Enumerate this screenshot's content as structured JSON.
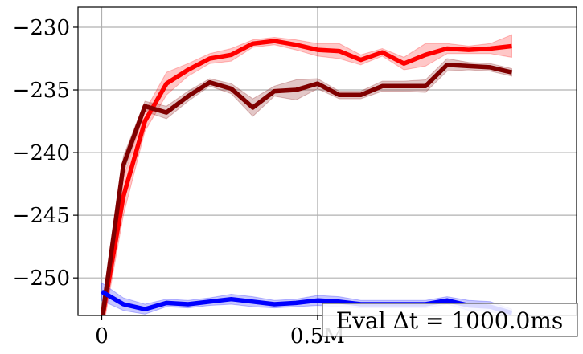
{
  "chart_data": {
    "type": "line",
    "title": "",
    "xlabel": "",
    "ylabel": "",
    "xlim": [
      -55000,
      1100000
    ],
    "ylim": [
      -253,
      -228.4
    ],
    "grid": true,
    "x_ticks": [
      {
        "value": 0,
        "label": "0"
      },
      {
        "value": 500000,
        "label": "0.5M"
      }
    ],
    "y_ticks": [
      {
        "value": -230,
        "label": "−230"
      },
      {
        "value": -235,
        "label": "−235"
      },
      {
        "value": -240,
        "label": "−240"
      },
      {
        "value": -245,
        "label": "−245"
      },
      {
        "value": -250,
        "label": "−250"
      }
    ],
    "legend_box": {
      "text": "Eval Δt = 1000.0ms",
      "placement": "bottom-right"
    },
    "x": [
      0,
      50000,
      100000,
      150000,
      200000,
      250000,
      300000,
      350000,
      400000,
      450000,
      500000,
      550000,
      600000,
      650000,
      700000,
      750000,
      800000,
      850000,
      900000,
      950000,
      1000000,
      1050000
    ],
    "series": [
      {
        "color": "#ff0000",
        "values": [
          -253.5,
          -243.5,
          -237.5,
          -234.5,
          -233.4,
          -232.5,
          -232.2,
          -231.3,
          -231.1,
          -231.4,
          -231.8,
          -231.9,
          -232.6,
          -232.0,
          -232.9,
          -232.2,
          -231.7,
          -231.8,
          -231.7,
          -231.5,
          null,
          null
        ],
        "band": [
          1.2,
          1.5,
          0.8,
          0.9,
          0.5,
          0.4,
          0.5,
          0.3,
          0.3,
          0.4,
          0.5,
          0.6,
          0.4,
          0.3,
          0.5,
          0.9,
          0.4,
          0.3,
          0.4,
          0.9,
          null,
          null
        ]
      },
      {
        "color": "#800000",
        "values": [
          -253.5,
          -241.0,
          -236.3,
          -236.8,
          -235.5,
          -234.4,
          -234.9,
          -236.4,
          -235.1,
          -235.0,
          -234.5,
          -235.4,
          -235.4,
          -234.7,
          -234.7,
          -234.7,
          -233.0,
          -233.1,
          -233.2,
          -233.6,
          null,
          null
        ],
        "band": [
          1.0,
          0.7,
          0.4,
          0.5,
          0.4,
          0.3,
          0.4,
          0.7,
          0.4,
          0.8,
          0.4,
          0.3,
          0.3,
          0.4,
          0.4,
          0.5,
          0.5,
          0.3,
          0.3,
          0.3,
          null,
          null
        ]
      },
      {
        "color": "#0000ff",
        "values": [
          -251.1,
          -252.1,
          -252.5,
          -252.0,
          -252.1,
          -251.9,
          -251.7,
          -251.9,
          -252.1,
          -252.0,
          -251.8,
          -251.9,
          -252.1,
          -252.1,
          -252.1,
          -252.1,
          -251.8,
          -252.2,
          -252.3,
          -252.8,
          null,
          null
        ],
        "band": [
          0.7,
          0.5,
          0.4,
          0.3,
          0.3,
          0.3,
          0.4,
          0.4,
          0.3,
          0.3,
          0.4,
          0.4,
          0.3,
          0.3,
          0.3,
          0.3,
          0.3,
          0.4,
          0.4,
          0.3,
          null,
          null
        ]
      }
    ]
  },
  "colors": {
    "grid": "#b0b0b0",
    "axes": "#000000",
    "legend_edge": "#555555"
  }
}
